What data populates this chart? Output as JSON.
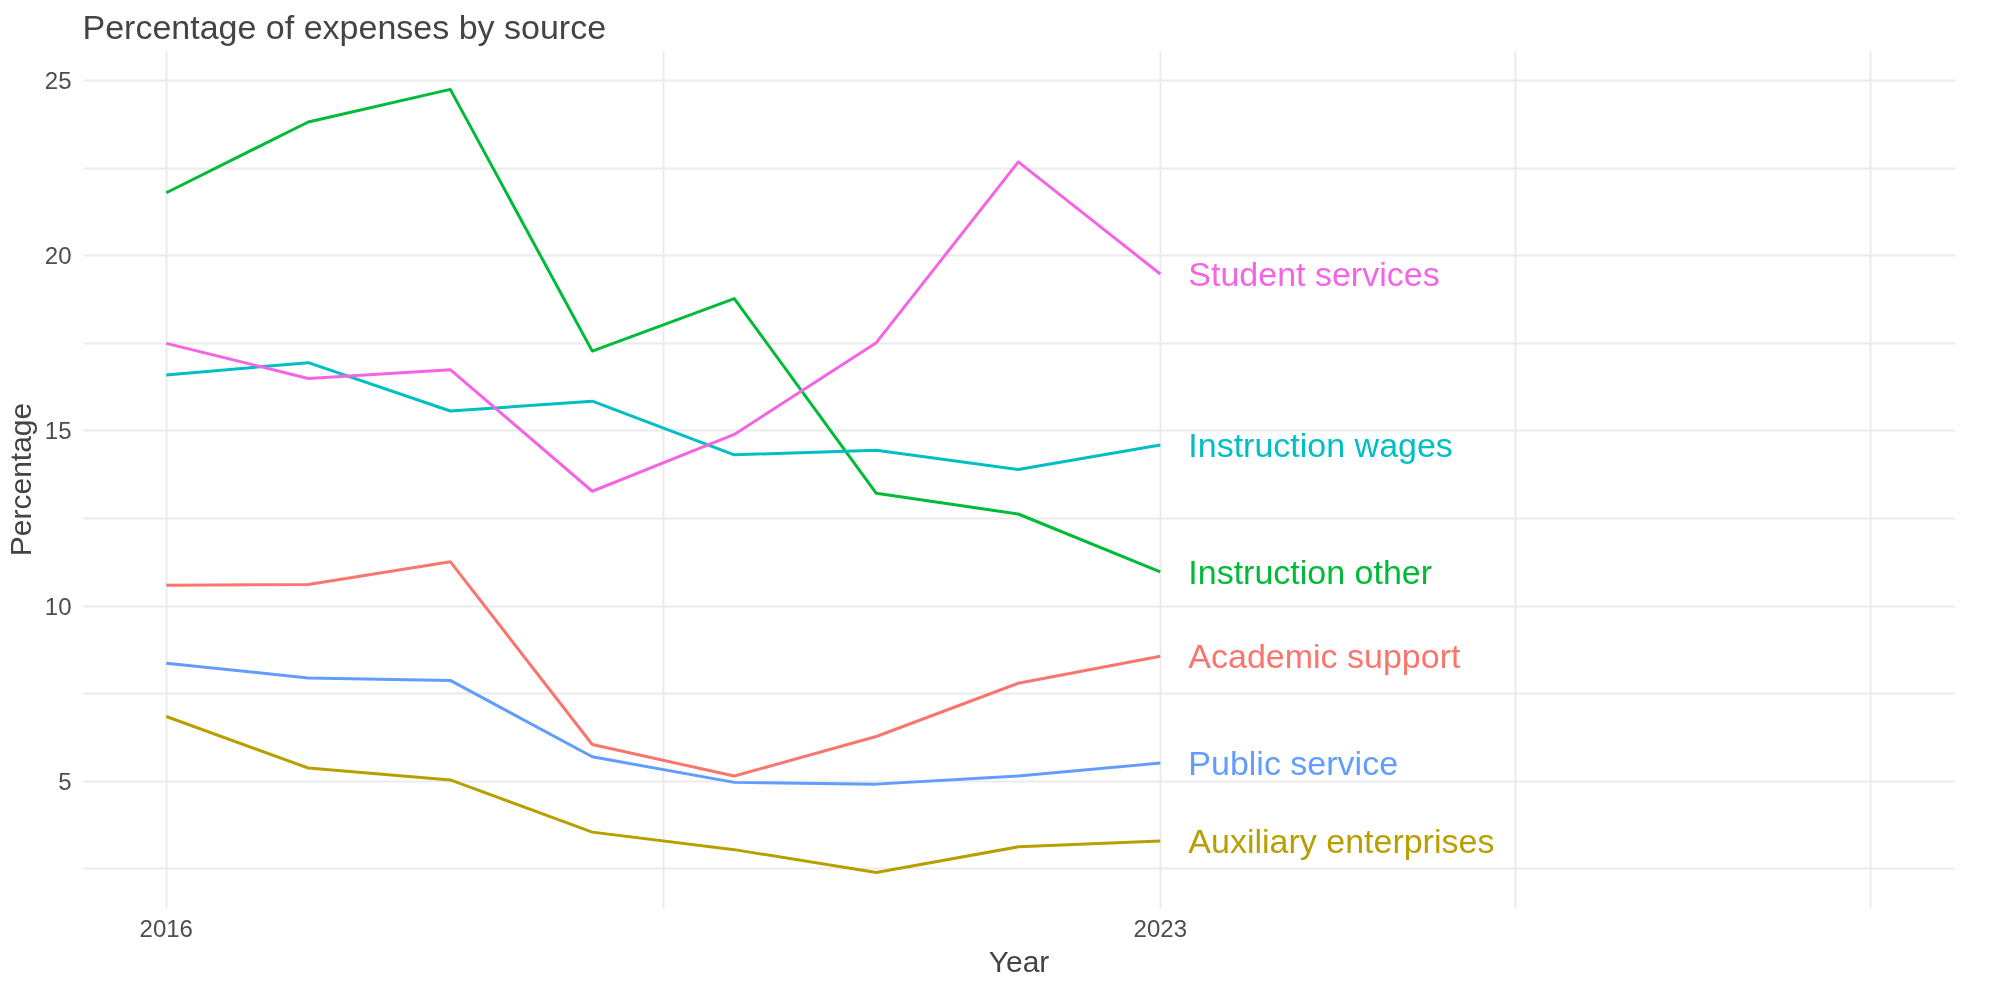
{
  "chart_data": {
    "type": "line",
    "title": "Percentage of expenses by source",
    "xlabel": "Year",
    "ylabel": "Percentage",
    "x": [
      2016,
      2017,
      2018,
      2019,
      2020,
      2021,
      2022,
      2023
    ],
    "series": [
      {
        "name": "Academic support",
        "color": "#f8766d",
        "values": [
          10.6,
          10.62,
          11.27,
          6.05,
          5.15,
          6.28,
          7.8,
          8.57
        ]
      },
      {
        "name": "Instruction other",
        "color": "#00ba38",
        "values": [
          21.8,
          23.82,
          24.75,
          17.28,
          18.78,
          13.22,
          12.63,
          10.98
        ]
      },
      {
        "name": "Instruction wages",
        "color": "#00bfc4",
        "values": [
          16.6,
          16.95,
          15.57,
          15.85,
          14.32,
          14.45,
          13.9,
          14.6
        ]
      },
      {
        "name": "Student services",
        "color": "#f564e3",
        "values": [
          17.5,
          16.5,
          16.75,
          13.28,
          14.9,
          17.52,
          22.68,
          19.48
        ]
      },
      {
        "name": "Public service",
        "color": "#619cff",
        "values": [
          8.37,
          7.95,
          7.88,
          5.7,
          4.97,
          4.92,
          5.15,
          5.52
        ]
      },
      {
        "name": "Auxiliary enterprises",
        "color": "#b79f00",
        "values": [
          6.85,
          5.38,
          5.04,
          3.55,
          3.05,
          2.4,
          3.13,
          3.3
        ]
      }
    ],
    "xlim": [
      2015.41,
      2028.6
    ],
    "ylim": [
      1.37,
      25.86
    ],
    "xticks": [
      2016,
      {
        "value": 2019.5,
        "label": null
      },
      2023,
      {
        "value": 2025.5,
        "label": null
      },
      {
        "value": 2028,
        "label": null
      }
    ],
    "yticks": [
      {
        "value": 2.5,
        "label": null
      },
      5,
      {
        "value": 7.5,
        "label": null
      },
      10,
      {
        "value": 12.5,
        "label": null
      },
      15,
      {
        "value": 17.5,
        "label": null
      },
      20,
      {
        "value": 22.5,
        "label": null
      },
      25
    ],
    "grid": true,
    "legend": false
  }
}
